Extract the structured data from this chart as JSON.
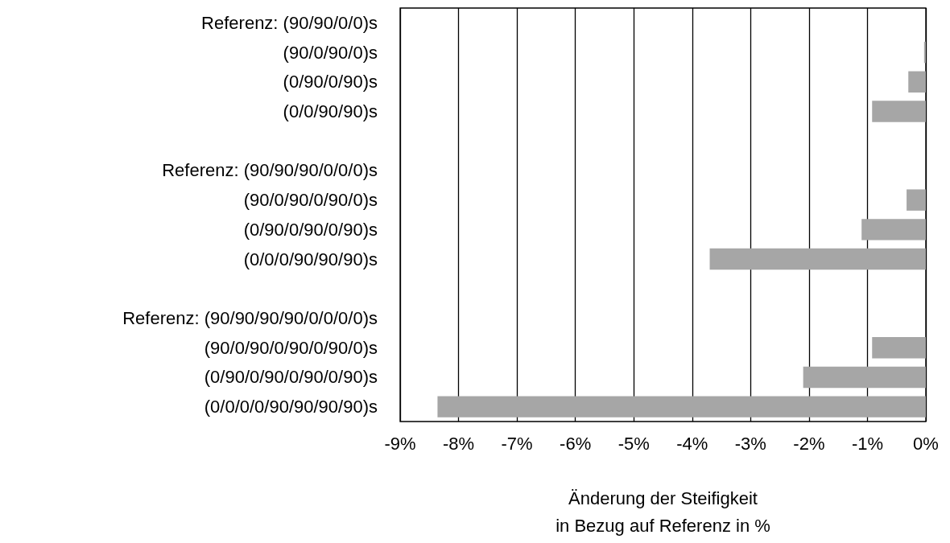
{
  "chart_data": {
    "type": "bar",
    "orientation": "horizontal",
    "xlabel": "Änderung der Steifigkeit\nin Bezug auf Referenz in %",
    "categories": [
      "Referenz: (90/90/0/0)s",
      "(90/0/90/0)s",
      "(0/90/0/90)s",
      "(0/0/90/90)s",
      null,
      "Referenz: (90/90/90/0/0/0)s",
      "(90/0/90/0/90/0)s",
      "(0/90/0/90/0/90)s",
      "(0/0/0/90/90/90)s",
      null,
      "Referenz: (90/90/90/90/0/0/0/0)s",
      "(90/0/90/0/90/0/90/0)s",
      "(0/90/0/90/0/90/0/90)s",
      "(0/0/0/0/90/90/90/90)s"
    ],
    "values": [
      0,
      -0.03,
      -0.3,
      -0.92,
      null,
      0,
      -0.33,
      -1.1,
      -3.7,
      null,
      0,
      -0.92,
      -2.1,
      -8.36
    ],
    "color": "#a6a6a6",
    "xlim": [
      -9,
      0
    ],
    "xticks": [
      {
        "value": -9,
        "label": "-9%"
      },
      {
        "value": -8,
        "label": "-8%"
      },
      {
        "value": -7,
        "label": "-7%"
      },
      {
        "value": -6,
        "label": "-6%"
      },
      {
        "value": -5,
        "label": "-5%"
      },
      {
        "value": -4,
        "label": "-4%"
      },
      {
        "value": -3,
        "label": "-3%"
      },
      {
        "value": -2,
        "label": "-2%"
      },
      {
        "value": -1,
        "label": "-1%"
      },
      {
        "value": 0,
        "label": "0%"
      }
    ],
    "grid": "x"
  }
}
